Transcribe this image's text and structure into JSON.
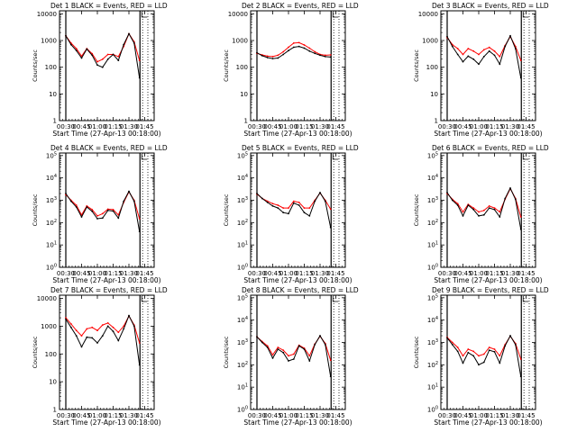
{
  "figure": {
    "x_time_labels": [
      "00:30",
      "00:45",
      "01:00",
      "01:15",
      "01:30",
      "01:45"
    ],
    "xlabel": "Start Time (27-Apr-13 00:18:00)",
    "ylabel": "Counts/sec",
    "legend_suffix": "BLACK = Events, RED = LLD",
    "colors": {
      "events": "#000000",
      "lld": "#ff0000",
      "axes": "#000000",
      "background": "#ffffff"
    }
  },
  "chart_data": [
    {
      "type": "line",
      "title": "Det 1",
      "xlabel": "Start Time (27-Apr-13 00:18:00)",
      "ylabel": "Counts/sec",
      "y_scale": "log",
      "ylim": [
        1,
        13000
      ],
      "y_tick_labels": [
        "1",
        "10",
        "100",
        "1000",
        "10000"
      ],
      "x": [
        "00:30",
        "00:35",
        "00:40",
        "00:45",
        "00:50",
        "00:55",
        "01:00",
        "01:05",
        "01:10",
        "01:15",
        "01:20",
        "01:25",
        "01:30",
        "01:35",
        "01:40"
      ],
      "series": [
        {
          "name": "Events",
          "color": "#000000",
          "values": [
            1500,
            700,
            420,
            220,
            480,
            280,
            120,
            100,
            200,
            300,
            180,
            700,
            1800,
            800,
            40
          ]
        },
        {
          "name": "LLD",
          "color": "#ff0000",
          "values": [
            1500,
            800,
            500,
            260,
            500,
            320,
            160,
            200,
            300,
            300,
            250,
            600,
            1800,
            900,
            180
          ]
        }
      ]
    },
    {
      "type": "line",
      "title": "Det 2",
      "xlabel": "Start Time (27-Apr-13 00:18:00)",
      "ylabel": "Counts/sec",
      "y_scale": "log",
      "ylim": [
        1,
        13000
      ],
      "y_tick_labels": [
        "1",
        "10",
        "100",
        "1000",
        "10000"
      ],
      "x": [
        "00:30",
        "00:35",
        "00:40",
        "00:45",
        "00:50",
        "00:55",
        "01:00",
        "01:05",
        "01:10",
        "01:15",
        "01:20",
        "01:25",
        "01:30",
        "01:35",
        "01:40"
      ],
      "series": [
        {
          "name": "Events",
          "color": "#000000",
          "values": [
            350,
            270,
            230,
            210,
            220,
            300,
            420,
            560,
            600,
            520,
            400,
            330,
            280,
            250,
            240
          ]
        },
        {
          "name": "LLD",
          "color": "#ff0000",
          "values": [
            330,
            290,
            260,
            250,
            280,
            380,
            560,
            800,
            830,
            680,
            520,
            380,
            300,
            280,
            290
          ]
        }
      ]
    },
    {
      "type": "line",
      "title": "Det 3",
      "xlabel": "Start Time (27-Apr-13 00:18:00)",
      "ylabel": "Counts/sec",
      "y_scale": "log",
      "ylim": [
        1,
        13000
      ],
      "y_tick_labels": [
        "1",
        "10",
        "100",
        "1000",
        "10000"
      ],
      "x": [
        "00:30",
        "00:35",
        "00:40",
        "00:45",
        "00:50",
        "00:55",
        "01:00",
        "01:05",
        "01:10",
        "01:15",
        "01:20",
        "01:25",
        "01:30",
        "01:35",
        "01:40"
      ],
      "series": [
        {
          "name": "Events",
          "color": "#000000",
          "values": [
            1400,
            600,
            300,
            160,
            260,
            200,
            130,
            250,
            400,
            280,
            130,
            600,
            1500,
            500,
            40
          ]
        },
        {
          "name": "LLD",
          "color": "#ff0000",
          "values": [
            1300,
            700,
            500,
            300,
            500,
            400,
            300,
            450,
            550,
            400,
            250,
            650,
            1400,
            600,
            180
          ]
        }
      ]
    },
    {
      "type": "line",
      "title": "Det 4",
      "xlabel": "Start Time (27-Apr-13 00:18:00)",
      "ylabel": "Counts/sec",
      "y_scale": "log",
      "ylim": [
        1,
        130000
      ],
      "y_tick_labels": [
        "10^0",
        "10^1",
        "10^2",
        "10^3",
        "10^4",
        "10^5"
      ],
      "x": [
        "00:30",
        "00:35",
        "00:40",
        "00:45",
        "00:50",
        "00:55",
        "01:00",
        "01:05",
        "01:10",
        "01:15",
        "01:20",
        "01:25",
        "01:30",
        "01:35",
        "01:40"
      ],
      "series": [
        {
          "name": "Events",
          "color": "#000000",
          "values": [
            2000,
            900,
            500,
            180,
            500,
            320,
            150,
            160,
            350,
            330,
            160,
            900,
            2500,
            900,
            40
          ]
        },
        {
          "name": "LLD",
          "color": "#ff0000",
          "values": [
            1800,
            1000,
            600,
            220,
            550,
            380,
            200,
            250,
            400,
            380,
            220,
            800,
            2400,
            1000,
            150
          ]
        }
      ]
    },
    {
      "type": "line",
      "title": "Det 5",
      "xlabel": "Start Time (27-Apr-13 00:18:00)",
      "ylabel": "Counts/sec",
      "y_scale": "log",
      "ylim": [
        1,
        130000
      ],
      "y_tick_labels": [
        "10^0",
        "10^1",
        "10^2",
        "10^3",
        "10^4",
        "10^5"
      ],
      "x": [
        "00:30",
        "00:35",
        "00:40",
        "00:45",
        "00:50",
        "00:55",
        "01:00",
        "01:05",
        "01:10",
        "01:15",
        "01:20",
        "01:25",
        "01:30",
        "01:35",
        "01:40"
      ],
      "series": [
        {
          "name": "Events",
          "color": "#000000",
          "values": [
            2000,
            1200,
            800,
            550,
            450,
            280,
            250,
            750,
            600,
            280,
            200,
            900,
            2200,
            900,
            60
          ]
        },
        {
          "name": "LLD",
          "color": "#ff0000",
          "values": [
            1900,
            1200,
            900,
            700,
            600,
            450,
            450,
            900,
            800,
            450,
            450,
            1000,
            2100,
            1000,
            400
          ]
        }
      ]
    },
    {
      "type": "line",
      "title": "Det 6",
      "xlabel": "Start Time (27-Apr-13 00:18:00)",
      "ylabel": "Counts/sec",
      "y_scale": "log",
      "ylim": [
        1,
        130000
      ],
      "y_tick_labels": [
        "10^0",
        "10^1",
        "10^2",
        "10^3",
        "10^4",
        "10^5"
      ],
      "x": [
        "00:30",
        "00:35",
        "00:40",
        "00:45",
        "00:50",
        "00:55",
        "01:00",
        "01:05",
        "01:10",
        "01:15",
        "01:20",
        "01:25",
        "01:30",
        "01:35",
        "01:40"
      ],
      "series": [
        {
          "name": "Events",
          "color": "#000000",
          "values": [
            2200,
            1000,
            600,
            200,
            600,
            380,
            200,
            220,
            450,
            380,
            180,
            1200,
            3500,
            1100,
            50
          ]
        },
        {
          "name": "LLD",
          "color": "#ff0000",
          "values": [
            2000,
            1100,
            700,
            300,
            650,
            450,
            300,
            350,
            550,
            450,
            300,
            1100,
            3300,
            1200,
            180
          ]
        }
      ]
    },
    {
      "type": "line",
      "title": "Det 7",
      "xlabel": "Start Time (27-Apr-13 00:18:00)",
      "ylabel": "Counts/sec",
      "y_scale": "log",
      "ylim": [
        1,
        13000
      ],
      "y_tick_labels": [
        "1",
        "10",
        "100",
        "1000",
        "10000"
      ],
      "x": [
        "00:30",
        "00:35",
        "00:40",
        "00:45",
        "00:50",
        "00:55",
        "01:00",
        "01:05",
        "01:10",
        "01:15",
        "01:20",
        "01:25",
        "01:30",
        "01:35",
        "01:40"
      ],
      "series": [
        {
          "name": "Events",
          "color": "#000000",
          "values": [
            1800,
            900,
            450,
            180,
            400,
            380,
            250,
            450,
            1000,
            650,
            300,
            800,
            2400,
            1000,
            40
          ]
        },
        {
          "name": "LLD",
          "color": "#ff0000",
          "values": [
            2000,
            1200,
            700,
            450,
            800,
            900,
            700,
            1100,
            1300,
            900,
            600,
            1000,
            2300,
            1100,
            250
          ]
        }
      ]
    },
    {
      "type": "line",
      "title": "Det 8",
      "xlabel": "Start Time (27-Apr-13 00:18:00)",
      "ylabel": "Counts/sec",
      "y_scale": "log",
      "ylim": [
        1,
        130000
      ],
      "y_tick_labels": [
        "10^0",
        "10^1",
        "10^2",
        "10^3",
        "10^4",
        "10^5"
      ],
      "x": [
        "00:30",
        "00:35",
        "00:40",
        "00:45",
        "00:50",
        "00:55",
        "01:00",
        "01:05",
        "01:10",
        "01:15",
        "01:20",
        "01:25",
        "01:30",
        "01:35",
        "01:40"
      ],
      "series": [
        {
          "name": "Events",
          "color": "#000000",
          "values": [
            1800,
            1000,
            600,
            200,
            500,
            350,
            150,
            180,
            700,
            500,
            150,
            800,
            2000,
            800,
            30
          ]
        },
        {
          "name": "LLD",
          "color": "#ff0000",
          "values": [
            1800,
            1100,
            700,
            280,
            600,
            450,
            250,
            300,
            750,
            550,
            250,
            850,
            1900,
            900,
            160
          ]
        }
      ]
    },
    {
      "type": "line",
      "title": "Det 9",
      "xlabel": "Start Time (27-Apr-13 00:18:00)",
      "ylabel": "Counts/sec",
      "y_scale": "log",
      "ylim": [
        1,
        130000
      ],
      "y_tick_labels": [
        "10^0",
        "10^1",
        "10^2",
        "10^3",
        "10^4",
        "10^5"
      ],
      "x": [
        "00:30",
        "00:35",
        "00:40",
        "00:45",
        "00:50",
        "00:55",
        "01:00",
        "01:05",
        "01:10",
        "01:15",
        "01:20",
        "01:25",
        "01:30",
        "01:35",
        "01:40"
      ],
      "series": [
        {
          "name": "Events",
          "color": "#000000",
          "values": [
            1600,
            800,
            400,
            120,
            350,
            250,
            100,
            130,
            450,
            380,
            120,
            700,
            2000,
            800,
            30
          ]
        },
        {
          "name": "LLD",
          "color": "#ff0000",
          "values": [
            1700,
            1000,
            600,
            250,
            500,
            400,
            250,
            300,
            600,
            500,
            250,
            800,
            1900,
            900,
            180
          ]
        }
      ]
    }
  ]
}
